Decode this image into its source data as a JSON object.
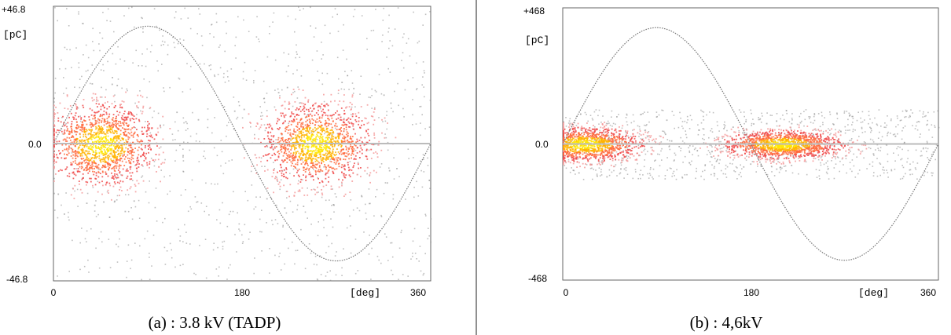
{
  "chart_data": [
    {
      "type": "scatter",
      "caption": "(a) : 3.8 kV (TADP)",
      "xlabel": "[deg]",
      "ylabel": "[pC]",
      "xlim": [
        0,
        360
      ],
      "ylim": [
        -46.8,
        46.8
      ],
      "x_tick_labels": [
        "0",
        "180",
        "360"
      ],
      "y_tick_labels": [
        "+46.8",
        "0.0",
        "-46.8"
      ],
      "reference_sine_amplitude": 40,
      "clusters": [
        {
          "x_center": 45,
          "x_spread": 55,
          "y_center": 0,
          "y_spread": 14,
          "intensity": "high"
        },
        {
          "x_center": 250,
          "x_spread": 55,
          "y_center": 0,
          "y_spread": 14,
          "intensity": "high"
        }
      ],
      "background_scatter_y_range": [
        -46.8,
        46.8
      ]
    },
    {
      "type": "scatter",
      "caption": "(b) : 4,6kV",
      "xlabel": "[deg]",
      "ylabel": "[pC]",
      "xlim": [
        0,
        360
      ],
      "ylim": [
        -468,
        468
      ],
      "x_tick_labels": [
        "0",
        "180",
        "360"
      ],
      "y_tick_labels": [
        "+468",
        "0.0",
        "-468"
      ],
      "reference_sine_amplitude": 400,
      "clusters": [
        {
          "x_center": 20,
          "x_spread": 60,
          "y_center": 0,
          "y_spread": 60,
          "intensity": "high"
        },
        {
          "x_center": 210,
          "x_spread": 60,
          "y_center": 0,
          "y_spread": 50,
          "intensity": "high"
        }
      ],
      "background_scatter_y_range": [
        -120,
        120
      ]
    }
  ]
}
